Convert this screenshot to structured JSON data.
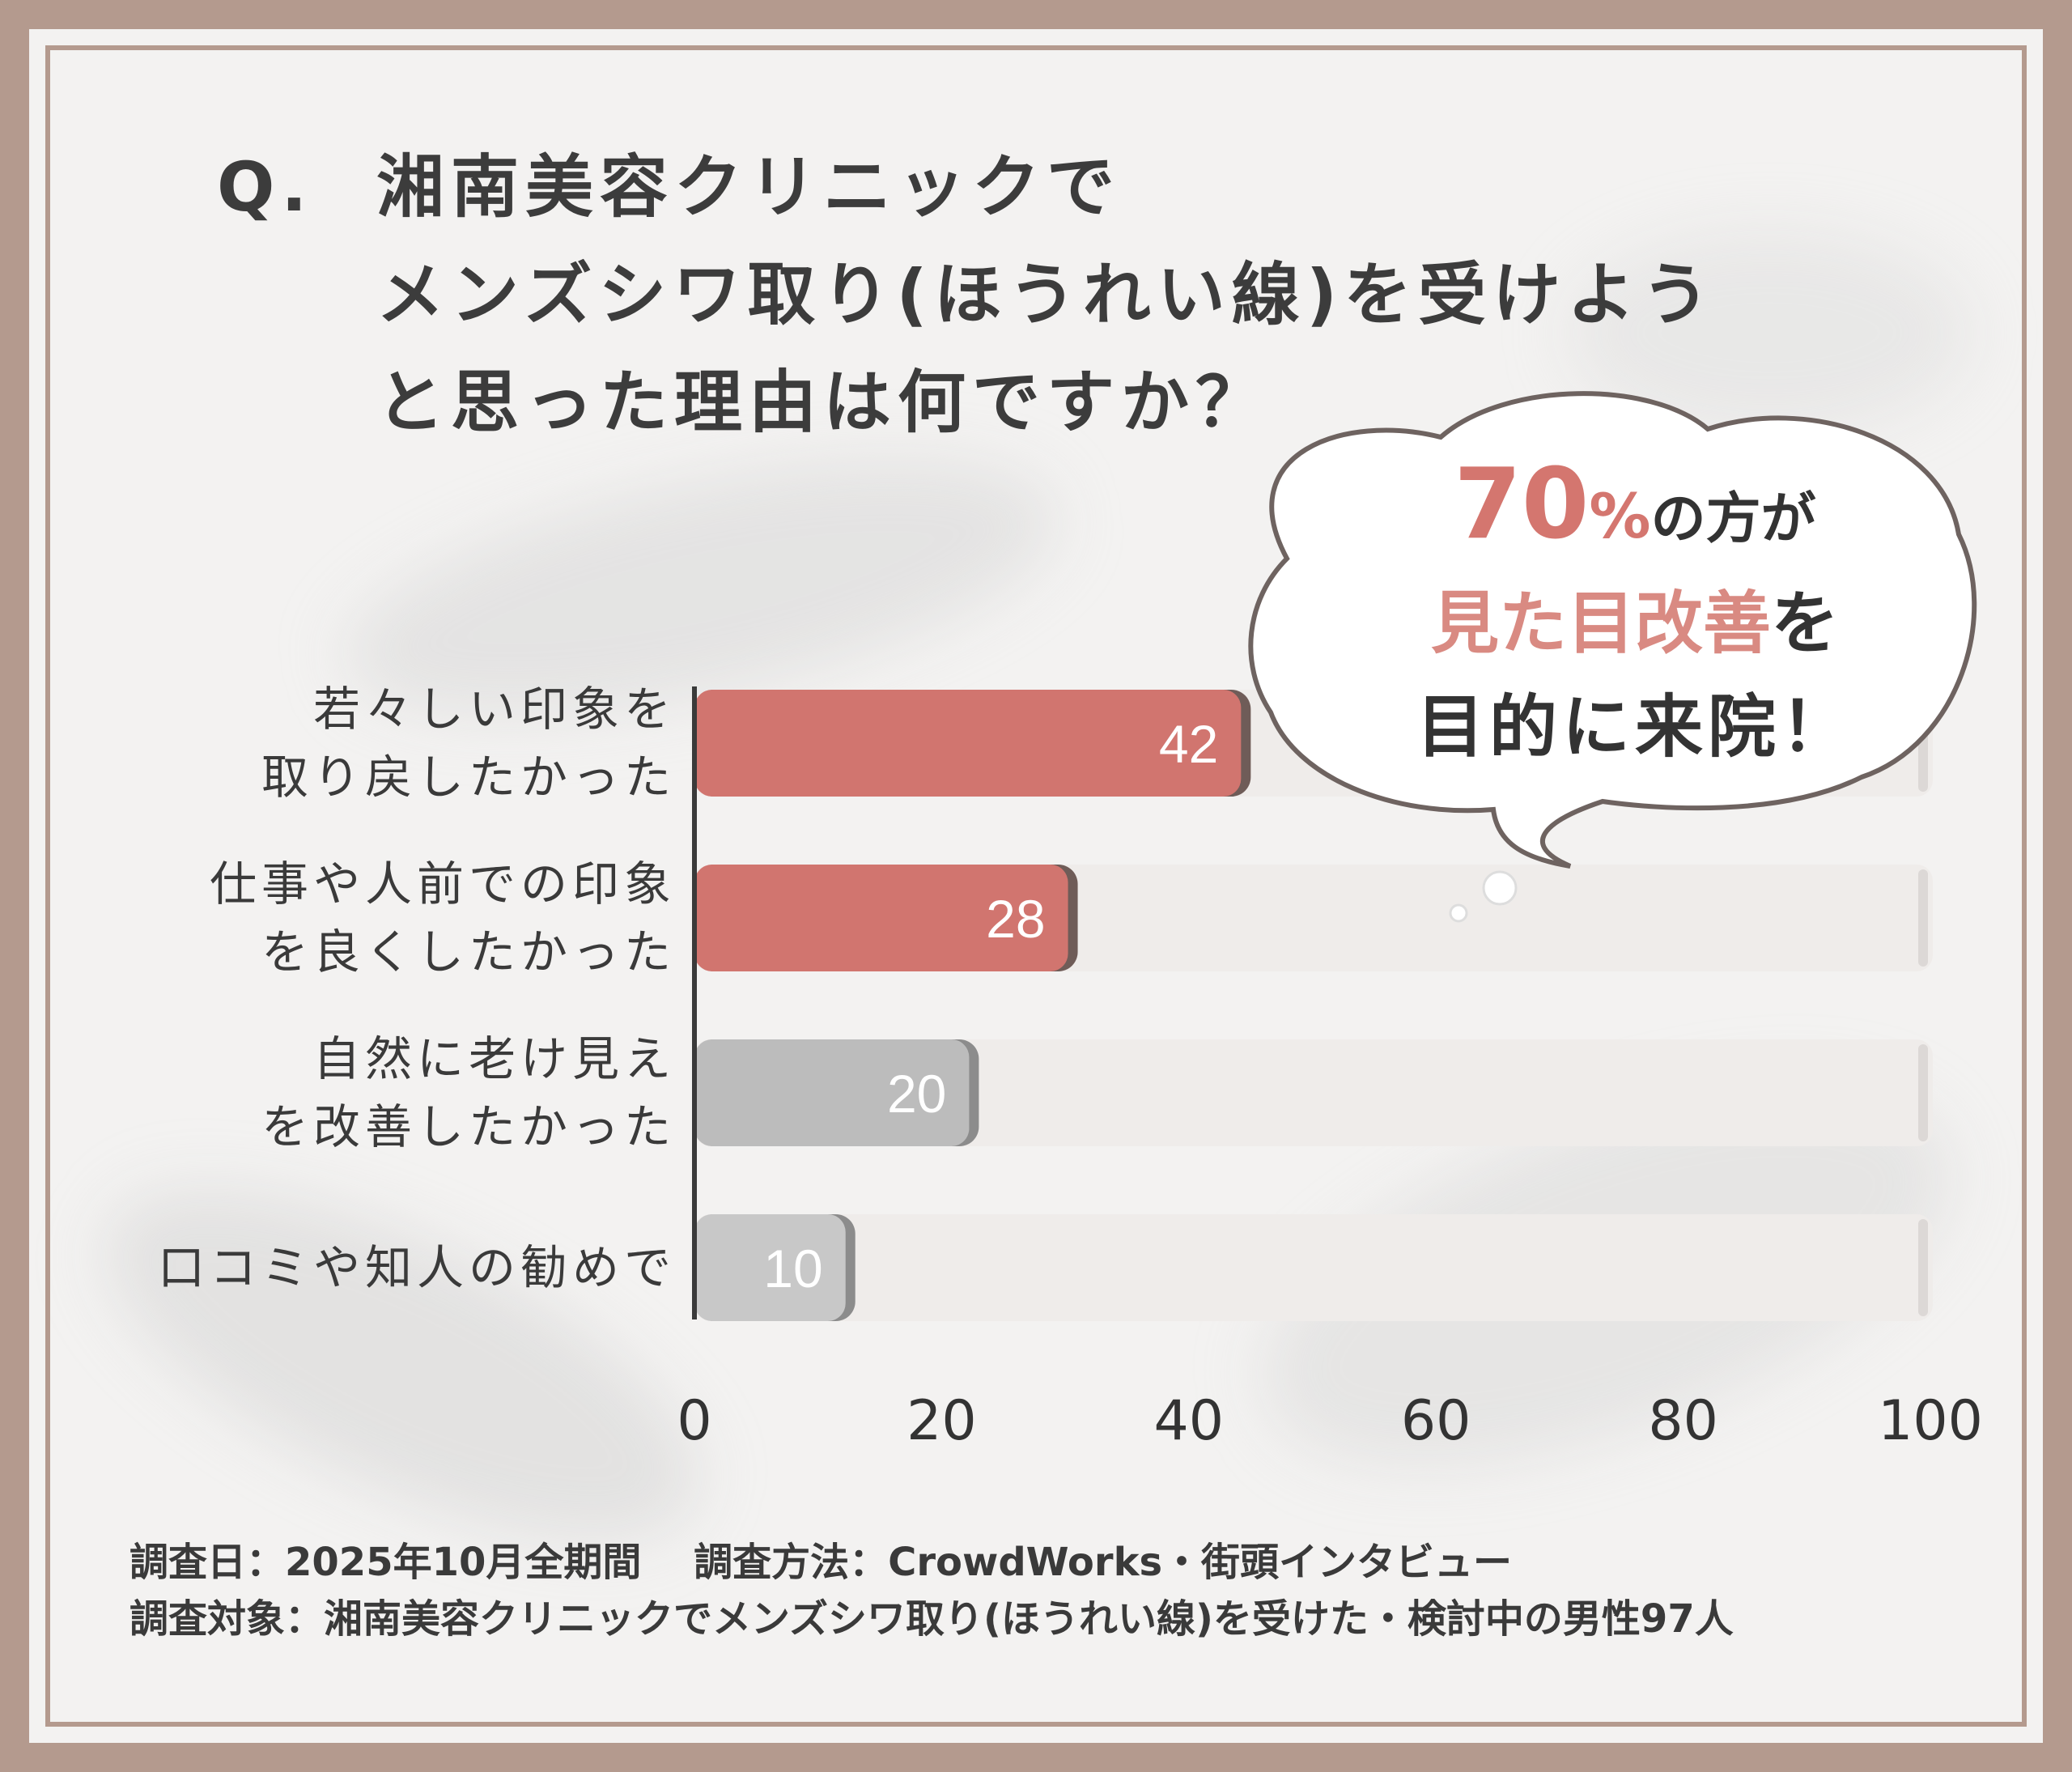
{
  "title": {
    "prefix": "Q.",
    "lines": [
      "湘南美容クリニックで",
      "メンズシワ取り(ほうれい線)を受けよう",
      "と思った理由は何ですか？"
    ]
  },
  "callout": {
    "percent_value": "70",
    "percent_sign": "%",
    "line1_rest": "の方が",
    "line2_highlight": "見た目改善",
    "line2_rest": "を",
    "line3": "目的に来院！"
  },
  "chart_data": {
    "type": "bar",
    "orientation": "horizontal",
    "categories": [
      [
        "若々しい印象を",
        "取り戻したかった"
      ],
      [
        "仕事や人前での印象",
        "を良くしたかった"
      ],
      [
        "自然に老け見え",
        "を改善したかった"
      ],
      [
        "口コミや知人の勧めで"
      ]
    ],
    "values": [
      42,
      28,
      20,
      10
    ],
    "value_labels": [
      "42",
      "28",
      "20",
      "10"
    ],
    "bar_colors": [
      "#d1756f",
      "#d1756f",
      "#bcbcbc",
      "#c8c8c8"
    ],
    "track_color": "#efecea",
    "xlim": [
      0,
      100
    ],
    "x_ticks": [
      "0",
      "20",
      "40",
      "60",
      "80",
      "100"
    ],
    "grid": false,
    "legend": "none"
  },
  "footer": {
    "line1": "調査日：2025年10月全期間　 調査方法：CrowdWorks・街頭インタビュー",
    "line2": "調査対象：湘南美容クリニックでメンズシワ取り(ほうれい線)を受けた・検討中の男性97人"
  },
  "colors": {
    "accent": "#d1756f",
    "frame": "#b49a8e",
    "text": "#3a3a3a"
  }
}
